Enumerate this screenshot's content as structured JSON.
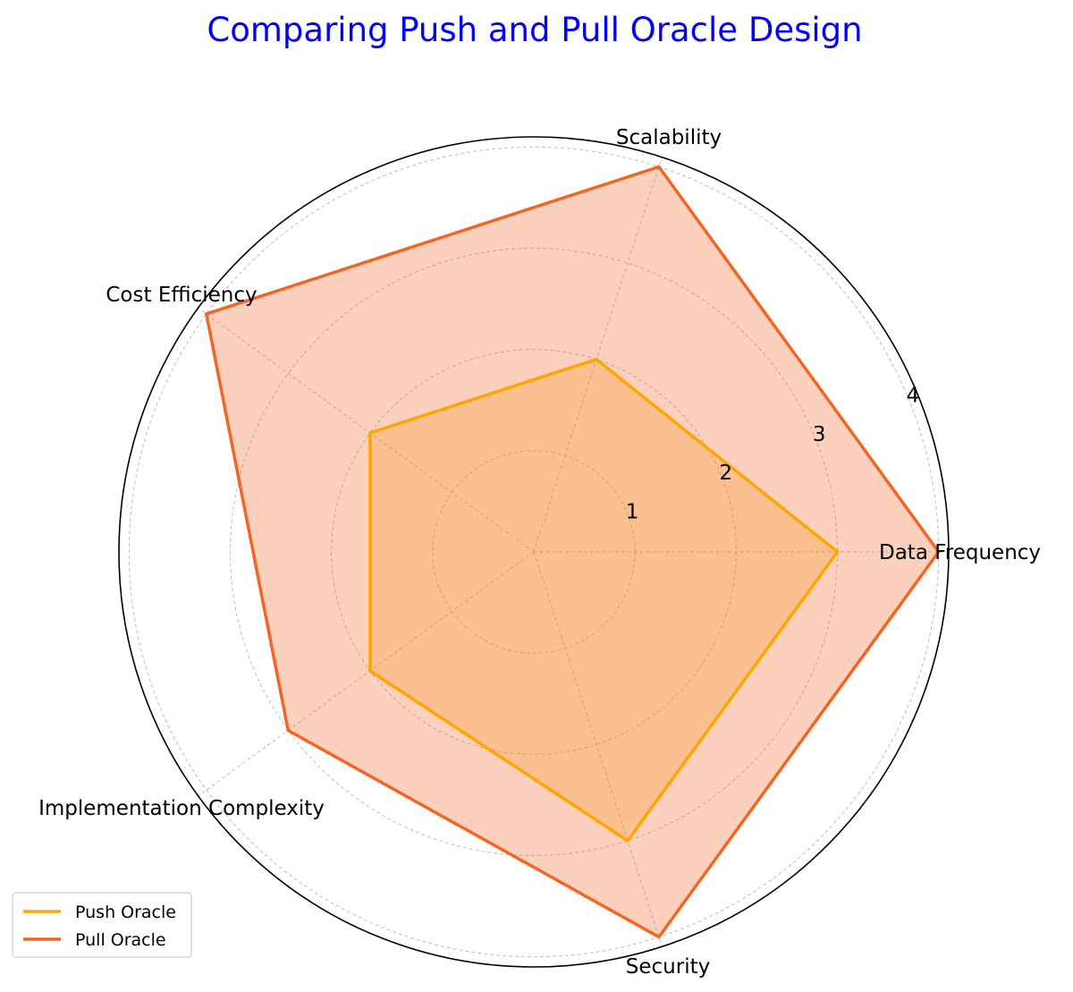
{
  "chart_data": {
    "type": "radar",
    "title": "Comparing Push and Pull Oracle Design",
    "title_color": "#0000ff",
    "categories": [
      "Data Frequency",
      "Scalability",
      "Cost Efficiency",
      "Implementation Complexity",
      "Security"
    ],
    "rlim": [
      0,
      4.1
    ],
    "rticks": [
      1,
      2,
      3,
      4
    ],
    "rtick_labels": [
      "1",
      "2",
      "3",
      "4"
    ],
    "grid": true,
    "legend_position": "lower-left",
    "series": [
      {
        "name": "Push Oracle",
        "values": [
          3,
          2,
          2,
          2,
          3
        ],
        "color": "#ffa500",
        "fill_opacity": 0.25
      },
      {
        "name": "Pull Oracle",
        "values": [
          4,
          4,
          4,
          3,
          4
        ],
        "color": "#f26522",
        "fill_opacity": 0.3
      }
    ]
  }
}
